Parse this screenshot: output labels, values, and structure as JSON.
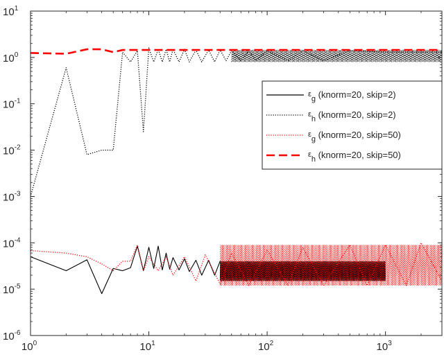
{
  "chart_data": {
    "type": "line",
    "title": "",
    "xlabel": "",
    "ylabel": "",
    "x_scale": "log",
    "y_scale": "log",
    "xlim": [
      1,
      3000
    ],
    "ylim": [
      1e-06,
      10
    ],
    "grid": false,
    "legend_position": "right",
    "x_ticks": [
      {
        "base": "10",
        "exp": "0",
        "value": 1
      },
      {
        "base": "10",
        "exp": "1",
        "value": 10
      },
      {
        "base": "10",
        "exp": "2",
        "value": 100
      },
      {
        "base": "10",
        "exp": "3",
        "value": 1000
      }
    ],
    "y_ticks": [
      {
        "base": "10",
        "exp": "1",
        "value": 10
      },
      {
        "base": "10",
        "exp": "0",
        "value": 1
      },
      {
        "base": "10",
        "exp": "-1",
        "value": 0.1
      },
      {
        "base": "10",
        "exp": "-2",
        "value": 0.01
      },
      {
        "base": "10",
        "exp": "-3",
        "value": 0.001
      },
      {
        "base": "10",
        "exp": "-4",
        "value": 0.0001
      },
      {
        "base": "10",
        "exp": "-5",
        "value": 1e-05
      },
      {
        "base": "10",
        "exp": "-6",
        "value": 1e-06
      }
    ],
    "series": [
      {
        "name": "ε_g (knorm=20, skip=2)",
        "symbol": "ε",
        "sub": "g",
        "params": " (knorm=20, skip=2)",
        "color": "#000000",
        "style": "solid",
        "width": 1.1,
        "x": [
          1,
          2,
          3,
          4,
          5,
          6,
          7,
          8,
          9,
          10,
          11,
          12,
          13,
          14,
          15,
          16,
          18,
          20,
          22,
          25,
          28,
          32,
          36,
          40,
          45,
          50,
          60,
          70,
          80,
          100,
          120,
          150,
          200,
          250,
          300,
          400,
          500,
          600,
          700,
          800,
          1000
        ],
        "y": [
          5e-05,
          2.5e-05,
          4.3e-05,
          8e-06,
          2.8e-05,
          2.5e-05,
          2.9e-05,
          8.5e-05,
          2.5e-05,
          8e-05,
          2.8e-05,
          8.5e-05,
          2.6e-05,
          6e-05,
          2.7e-05,
          4.8e-05,
          2.6e-05,
          4.5e-05,
          2.4e-05,
          4.2e-05,
          2e-05,
          4.2e-05,
          2e-05,
          4e-05,
          2e-05,
          4e-05,
          2e-05,
          3.8e-05,
          2e-05,
          3.8e-05,
          2e-05,
          3.6e-05,
          1.9e-05,
          3.6e-05,
          1.9e-05,
          3.5e-05,
          2e-05,
          3.5e-05,
          2e-05,
          3.4e-05,
          2.6e-05
        ],
        "band": {
          "from": 40,
          "to": 1000,
          "lo": 1.5e-05,
          "hi": 4e-05
        }
      },
      {
        "name": "ε_h (knorm=20, skip=2)",
        "symbol": "ε",
        "sub": "h",
        "params": " (knorm=20, skip=2)",
        "color": "#000000",
        "style": "dotted",
        "width": 1.3,
        "x": [
          1,
          2,
          3,
          4,
          5,
          6,
          7,
          8,
          9,
          10,
          11,
          12,
          13,
          14,
          15,
          16,
          18,
          20,
          22,
          25,
          28,
          32,
          36,
          40,
          45,
          50,
          60,
          70,
          80,
          100,
          150,
          200,
          300,
          500,
          1000,
          2000,
          3000
        ],
        "y": [
          0.001,
          0.6,
          0.008,
          0.01,
          0.01,
          1.3,
          0.8,
          1.4,
          0.025,
          1.6,
          0.8,
          1.5,
          0.8,
          1.5,
          0.8,
          1.5,
          0.8,
          1.5,
          0.8,
          1.45,
          0.8,
          1.45,
          0.8,
          1.45,
          0.85,
          1.4,
          0.85,
          1.4,
          0.85,
          1.4,
          0.85,
          1.4,
          0.85,
          1.4,
          1.3,
          1.3,
          1.3
        ],
        "band": {
          "from": 50,
          "to": 3000,
          "lo": 0.8,
          "hi": 1.45
        }
      },
      {
        "name": "ε_g (knorm=20, skip=50)",
        "symbol": "ε",
        "sub": "g",
        "params": " (knorm=20, skip=50)",
        "color": "#ff0000",
        "style": "dotted",
        "width": 1.3,
        "x": [
          1,
          2,
          3,
          4,
          5,
          6,
          7,
          8,
          9,
          10,
          12,
          14,
          16,
          20,
          25,
          30,
          40,
          50,
          70,
          100,
          150,
          200,
          300,
          500,
          700,
          1000,
          1500,
          2000,
          3000
        ],
        "y": [
          6.8e-05,
          6e-05,
          5e-05,
          3.5e-05,
          2.5e-05,
          4e-05,
          4e-05,
          9e-05,
          2.5e-05,
          5e-05,
          2.5e-05,
          5e-05,
          2e-05,
          5e-05,
          1.5e-05,
          5.5e-05,
          1.3e-05,
          6e-05,
          1.2e-05,
          7e-05,
          1.2e-05,
          8e-05,
          1.2e-05,
          9e-05,
          1.2e-05,
          9e-05,
          1.2e-05,
          0.0001,
          1.5e-05
        ],
        "band": {
          "from": 40,
          "to": 3000,
          "lo": 1.2e-05,
          "hi": 9e-05
        }
      },
      {
        "name": "ε_h (knorm=20, skip=50)",
        "symbol": "ε",
        "sub": "h",
        "params": " (knorm=20, skip=50)",
        "color": "#ff0000",
        "style": "dashed",
        "width": 2.6,
        "x": [
          1,
          2,
          3,
          4,
          5,
          6,
          7,
          8,
          10,
          20,
          50,
          100,
          200,
          500,
          1000,
          2000,
          3000
        ],
        "y": [
          1.25,
          1.2,
          1.5,
          1.5,
          1.3,
          1.45,
          1.45,
          1.45,
          1.45,
          1.45,
          1.45,
          1.45,
          1.45,
          1.45,
          1.45,
          1.45,
          1.45
        ]
      }
    ]
  }
}
